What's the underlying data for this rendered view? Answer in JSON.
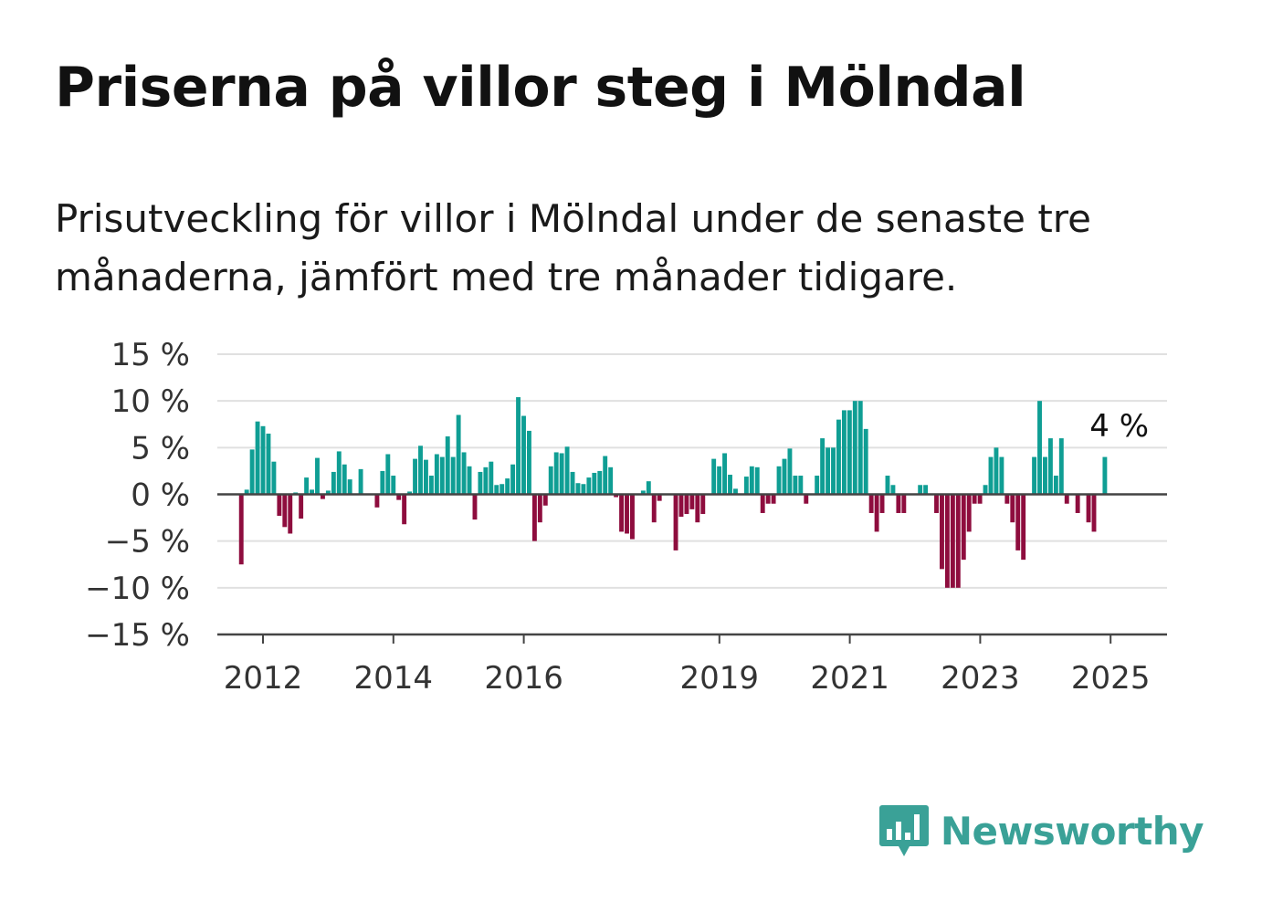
{
  "title": "Priserna på villor steg i Mölndal",
  "subtitle": "Prisutveckling för villor i Mölndal under de senaste tre månaderna, jämfört med tre månader tidigare.",
  "brand": {
    "name": "Newsworthy",
    "color": "#3aa197",
    "icon": "bar-chart-speech-bubble-icon"
  },
  "colors": {
    "positive": "#0f9e94",
    "negative": "#8e0d3e",
    "grid": "#e0e0e0",
    "axis": "#444444"
  },
  "chart_data": {
    "type": "bar",
    "ylim": [
      -15,
      15
    ],
    "ytick_labels": [
      "15 %",
      "10 %",
      "5 %",
      "0 %",
      "−5 %",
      "−10 %",
      "−15 %"
    ],
    "ytick_values": [
      15,
      10,
      5,
      0,
      -5,
      -10,
      -15
    ],
    "xtick_labels": [
      "2012",
      "2014",
      "2016",
      "2019",
      "2021",
      "2023",
      "2025"
    ],
    "xtick_values": [
      2012,
      2014,
      2016,
      2019,
      2021,
      2023,
      2025
    ],
    "x_start": 2011.667,
    "x_step": 0.0833,
    "annotation": "4 %",
    "grid": true,
    "values": [
      -7.5,
      0.5,
      4.8,
      7.8,
      7.3,
      6.5,
      3.5,
      -2.3,
      -3.5,
      -4.2,
      0.2,
      -2.6,
      1.8,
      0.5,
      3.9,
      -0.5,
      0.4,
      2.4,
      4.6,
      3.2,
      1.6,
      0,
      2.7,
      0,
      0,
      -1.4,
      2.5,
      4.3,
      2.0,
      -0.6,
      -3.2,
      0.3,
      3.8,
      5.2,
      3.7,
      2.0,
      4.3,
      4.0,
      6.2,
      4.0,
      8.5,
      4.5,
      3.0,
      -2.7,
      2.4,
      2.9,
      3.5,
      1.0,
      1.1,
      1.7,
      3.2,
      10.4,
      8.4,
      6.8,
      -5.0,
      -3.0,
      -1.2,
      3.0,
      4.5,
      4.4,
      5.1,
      2.4,
      1.2,
      1.1,
      1.8,
      2.3,
      2.5,
      4.1,
      2.9,
      -0.3,
      -4.0,
      -4.2,
      -4.8,
      0,
      0.4,
      1.4,
      -3.0,
      -0.7,
      0,
      0,
      -6.0,
      -2.4,
      -2.1,
      -1.6,
      -3.0,
      -2.1,
      0,
      3.8,
      3.0,
      4.4,
      2.1,
      0.6,
      0,
      1.9,
      3.0,
      2.9,
      -2.0,
      -1.0,
      -1.0,
      3.0,
      3.8,
      4.9,
      2.0,
      2.0,
      -1.0,
      0,
      2.0,
      6.0,
      5.0,
      5.0,
      8.0,
      9.0,
      9.0,
      10.0,
      10.0,
      7.0,
      -2.0,
      -4.0,
      -2.0,
      2.0,
      1.0,
      -2.0,
      -2.0,
      0,
      0,
      1.0,
      1.0,
      0,
      -2.0,
      -8.0,
      -10.0,
      -10.0,
      -10.0,
      -7.0,
      -4.0,
      -1.0,
      -1.0,
      1.0,
      4.0,
      5.0,
      4.0,
      -1.0,
      -3.0,
      -6.0,
      -7.0,
      0,
      4.0,
      10.0,
      4.0,
      6.0,
      2.0,
      6.0,
      -1.0,
      0,
      -2.0,
      0,
      -3.0,
      -4.0,
      0,
      4.0
    ]
  }
}
